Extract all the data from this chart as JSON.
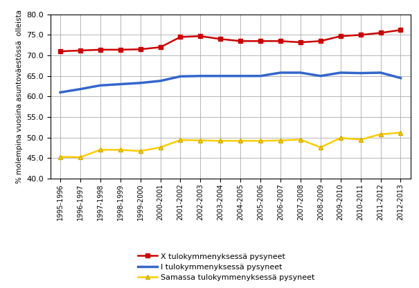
{
  "x_labels": [
    "1995-1996",
    "1996-1997",
    "1997-1998",
    "1998-1999",
    "1999-2000",
    "2000-2001",
    "2001-2002",
    "2002-2003",
    "2003-2004",
    "2004-2005",
    "2005-2006",
    "2006-2007",
    "2007-2008",
    "2008-2009",
    "2009-2010",
    "2010-2011",
    "2011-2012",
    "2012-2013"
  ],
  "series_X": [
    71.0,
    71.2,
    71.4,
    71.4,
    71.5,
    72.0,
    74.5,
    74.7,
    74.0,
    73.5,
    73.5,
    73.5,
    73.2,
    73.5,
    74.7,
    75.0,
    75.5,
    76.2
  ],
  "series_I": [
    61.0,
    61.8,
    62.7,
    63.0,
    63.3,
    63.8,
    64.9,
    65.0,
    65.0,
    65.0,
    65.0,
    65.8,
    65.8,
    65.0,
    65.8,
    65.7,
    65.8,
    64.5
  ],
  "series_S": [
    45.3,
    45.2,
    47.0,
    47.0,
    46.7,
    47.6,
    49.4,
    49.3,
    49.2,
    49.2,
    49.2,
    49.3,
    49.5,
    47.6,
    49.9,
    49.5,
    50.8,
    51.2
  ],
  "color_X": "#cc0000",
  "color_I": "#3366cc",
  "color_S": "#ffcc00",
  "marker_X": "s",
  "marker_I": "None",
  "marker_S": "^",
  "legend_X": "X tulokymmenyksessä pysyneet",
  "legend_I": "I tulokymmenyksessä pysyneet",
  "legend_S": "Samassa tulokymmenyksessä pysyneet",
  "ylabel": "% molempina vuosina asuntoväestössä  olleista",
  "ylim": [
    40.0,
    80.0
  ],
  "yticks": [
    40.0,
    45.0,
    50.0,
    55.0,
    60.0,
    65.0,
    70.0,
    75.0,
    80.0
  ],
  "background_color": "#ffffff",
  "grid_color": "#aaaaaa"
}
